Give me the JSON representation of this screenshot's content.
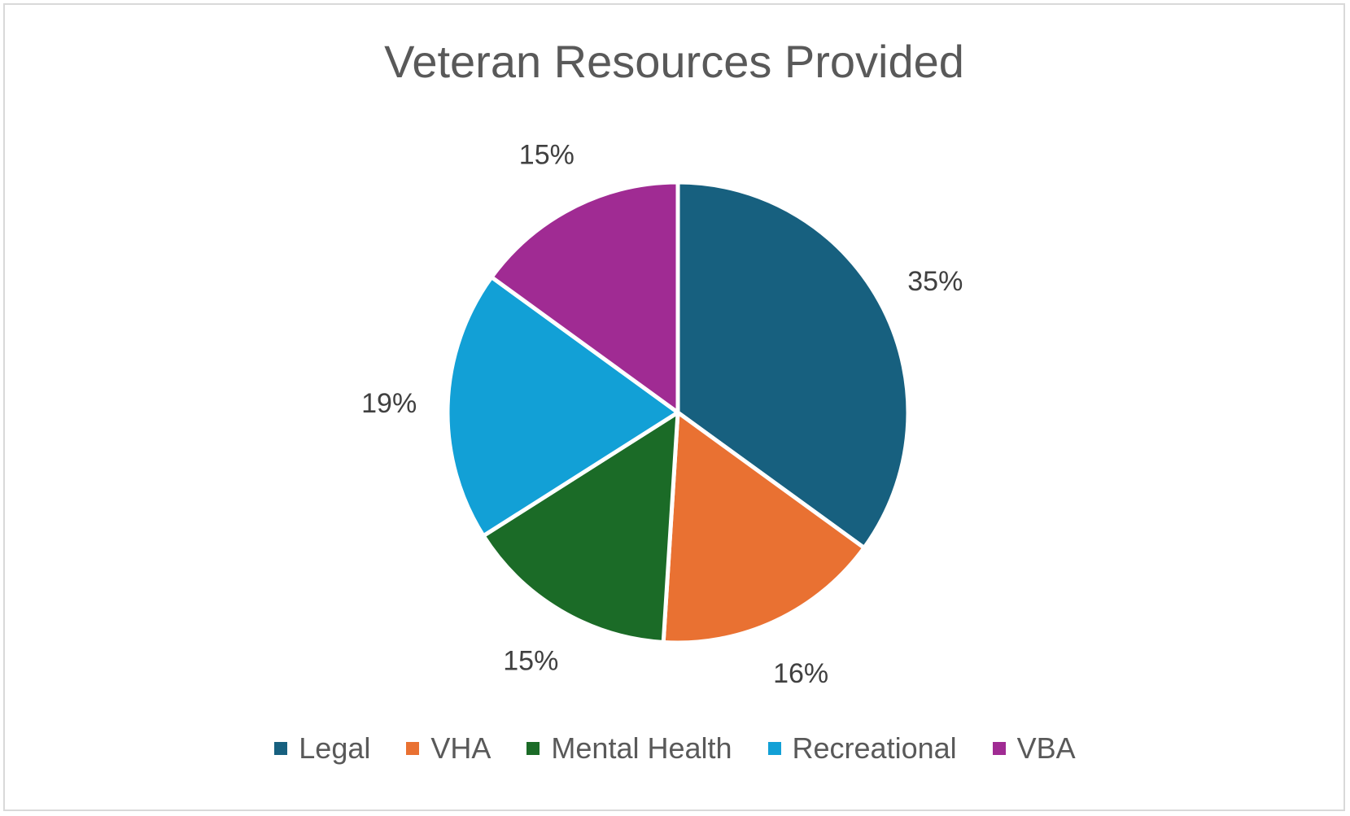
{
  "chart_data": {
    "type": "pie",
    "title": "Veteran Resources Provided",
    "categories": [
      "Legal",
      "VHA",
      "Mental Health",
      "Recreational",
      "VBA"
    ],
    "values": [
      35,
      16,
      15,
      19,
      15
    ],
    "data_labels": [
      "35%",
      "16%",
      "15%",
      "19%",
      "15%"
    ],
    "colors": [
      "#17607f",
      "#e97132",
      "#1b6b27",
      "#12a0d6",
      "#a02b93"
    ],
    "legend_position": "bottom",
    "start_angle": "12 o'clock",
    "direction": "clockwise"
  }
}
